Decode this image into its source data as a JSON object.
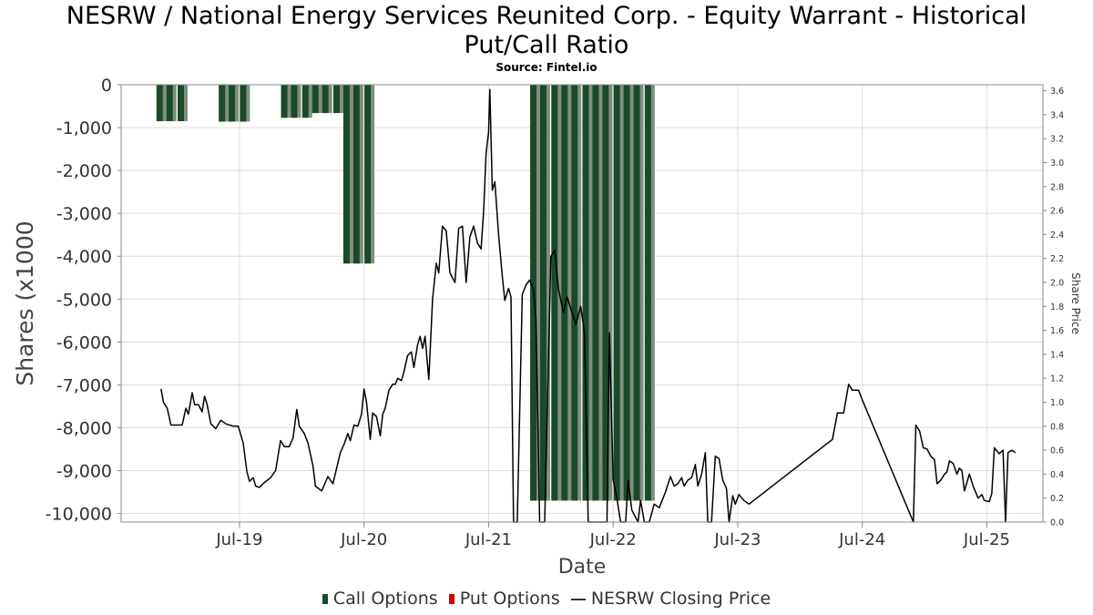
{
  "title_line1": "NESRW / National Energy Services Reunited Corp. - Equity Warrant - Historical",
  "title_line2": "Put/Call Ratio",
  "subtitle": "Source: Fintel.io",
  "chart_data": {
    "type": "bar",
    "title": "NESRW / National Energy Services Reunited Corp. - Equity Warrant - Historical Put/Call Ratio",
    "subtitle": "Source: Fintel.io",
    "xlabel": "Date",
    "ylabel": "Shares (x1000",
    "y2label": "Share Price",
    "xlim": [
      2018.55,
      2025.95
    ],
    "ylim": [
      -10200,
      0
    ],
    "y2lim": [
      0,
      3.65
    ],
    "x_ticks": [
      {
        "x": 2019.5,
        "label": "Jul-19"
      },
      {
        "x": 2020.5,
        "label": "Jul-20"
      },
      {
        "x": 2021.5,
        "label": "Jul-21"
      },
      {
        "x": 2022.5,
        "label": "Jul-22"
      },
      {
        "x": 2023.5,
        "label": "Jul-23"
      },
      {
        "x": 2024.5,
        "label": "Jul-24"
      },
      {
        "x": 2025.5,
        "label": "Jul-25"
      }
    ],
    "y_ticks": [
      0,
      -1000,
      -2000,
      -3000,
      -4000,
      -5000,
      -6000,
      -7000,
      -8000,
      -9000,
      -10000
    ],
    "y_tick_labels": [
      "0",
      "-1,000",
      "-2,000",
      "-3,000",
      "-4,000",
      "-5,000",
      "-6,000",
      "-7,000",
      "-8,000",
      "-9,000",
      "-10,000"
    ],
    "y2_ticks": [
      0.0,
      0.2,
      0.4,
      0.6,
      0.8,
      1.0,
      1.2,
      1.4,
      1.6,
      1.8,
      2.0,
      2.2,
      2.4,
      2.6,
      2.8,
      3.0,
      3.2,
      3.4,
      3.6
    ],
    "y2_tick_labels": [
      "0.0",
      "0.2",
      "0.4",
      "0.6",
      "0.8",
      "1.0",
      "1.2",
      "1.4",
      "1.6",
      "1.8",
      "2.0",
      "2.2",
      "2.4",
      "2.6",
      "2.8",
      "3.0",
      "3.2",
      "3.4",
      "3.6"
    ],
    "grid": true,
    "legend_position": "bottom",
    "colors": {
      "call": "#1a4a2a",
      "call_edge": "#7f8f80",
      "put": "#cc0000",
      "price": "#000000"
    },
    "series": [
      {
        "name": "Call Options",
        "bars": [
          {
            "x": 2018.87,
            "value": -850
          },
          {
            "x": 2018.95,
            "value": -850
          },
          {
            "x": 2019.04,
            "value": -850
          },
          {
            "x": 2019.37,
            "value": -860
          },
          {
            "x": 2019.45,
            "value": -860
          },
          {
            "x": 2019.54,
            "value": -860
          },
          {
            "x": 2019.87,
            "value": -770
          },
          {
            "x": 2019.95,
            "value": -770
          },
          {
            "x": 2020.04,
            "value": -770
          },
          {
            "x": 2020.12,
            "value": -660
          },
          {
            "x": 2020.2,
            "value": -660
          },
          {
            "x": 2020.29,
            "value": -660
          },
          {
            "x": 2020.37,
            "value": -4170
          },
          {
            "x": 2020.45,
            "value": -4170
          },
          {
            "x": 2020.54,
            "value": -4170
          },
          {
            "x": 2021.87,
            "value": -9700
          },
          {
            "x": 2021.95,
            "value": -9700
          },
          {
            "x": 2022.04,
            "value": -9700
          },
          {
            "x": 2022.12,
            "value": -9700
          },
          {
            "x": 2022.2,
            "value": -9700
          },
          {
            "x": 2022.29,
            "value": -9700
          },
          {
            "x": 2022.37,
            "value": -9700
          },
          {
            "x": 2022.45,
            "value": -9700
          },
          {
            "x": 2022.54,
            "value": -9700
          },
          {
            "x": 2022.62,
            "value": -9700
          },
          {
            "x": 2022.7,
            "value": -9700
          },
          {
            "x": 2022.79,
            "value": -9700
          }
        ]
      },
      {
        "name": "Put Options",
        "bars": []
      },
      {
        "name": "NESRW Closing Price",
        "points": [
          [
            2018.87,
            1.11
          ],
          [
            2018.89,
            1.0
          ],
          [
            2018.92,
            0.95
          ],
          [
            2018.95,
            0.81
          ],
          [
            2019.04,
            0.81
          ],
          [
            2019.07,
            0.95
          ],
          [
            2019.09,
            0.9
          ],
          [
            2019.12,
            1.08
          ],
          [
            2019.14,
            0.98
          ],
          [
            2019.17,
            0.98
          ],
          [
            2019.2,
            0.92
          ],
          [
            2019.22,
            1.05
          ],
          [
            2019.24,
            0.98
          ],
          [
            2019.27,
            0.82
          ],
          [
            2019.31,
            0.78
          ],
          [
            2019.35,
            0.85
          ],
          [
            2019.39,
            0.82
          ],
          [
            2019.45,
            0.8
          ],
          [
            2019.49,
            0.8
          ],
          [
            2019.53,
            0.66
          ],
          [
            2019.56,
            0.42
          ],
          [
            2019.58,
            0.34
          ],
          [
            2019.61,
            0.37
          ],
          [
            2019.63,
            0.3
          ],
          [
            2019.66,
            0.29
          ],
          [
            2019.7,
            0.33
          ],
          [
            2019.75,
            0.37
          ],
          [
            2019.79,
            0.43
          ],
          [
            2019.83,
            0.68
          ],
          [
            2019.86,
            0.63
          ],
          [
            2019.9,
            0.63
          ],
          [
            2019.93,
            0.7
          ],
          [
            2019.96,
            0.94
          ],
          [
            2019.98,
            0.8
          ],
          [
            2020.02,
            0.74
          ],
          [
            2020.05,
            0.66
          ],
          [
            2020.09,
            0.47
          ],
          [
            2020.11,
            0.3
          ],
          [
            2020.16,
            0.26
          ],
          [
            2020.21,
            0.38
          ],
          [
            2020.25,
            0.32
          ],
          [
            2020.28,
            0.45
          ],
          [
            2020.31,
            0.58
          ],
          [
            2020.34,
            0.65
          ],
          [
            2020.37,
            0.74
          ],
          [
            2020.39,
            0.68
          ],
          [
            2020.42,
            0.81
          ],
          [
            2020.45,
            0.8
          ],
          [
            2020.48,
            0.9
          ],
          [
            2020.5,
            1.11
          ],
          [
            2020.52,
            1.0
          ],
          [
            2020.55,
            0.69
          ],
          [
            2020.57,
            0.91
          ],
          [
            2020.6,
            0.88
          ],
          [
            2020.63,
            0.72
          ],
          [
            2020.65,
            0.9
          ],
          [
            2020.67,
            0.95
          ],
          [
            2020.7,
            1.1
          ],
          [
            2020.73,
            1.15
          ],
          [
            2020.75,
            1.15
          ],
          [
            2020.77,
            1.2
          ],
          [
            2020.8,
            1.18
          ],
          [
            2020.82,
            1.25
          ],
          [
            2020.85,
            1.39
          ],
          [
            2020.88,
            1.42
          ],
          [
            2020.9,
            1.29
          ],
          [
            2020.93,
            1.48
          ],
          [
            2020.95,
            1.55
          ],
          [
            2020.97,
            1.45
          ],
          [
            2020.99,
            1.55
          ],
          [
            2021.02,
            1.19
          ],
          [
            2021.05,
            1.86
          ],
          [
            2021.08,
            2.16
          ],
          [
            2021.1,
            2.08
          ],
          [
            2021.13,
            2.47
          ],
          [
            2021.16,
            2.43
          ],
          [
            2021.19,
            2.08
          ],
          [
            2021.23,
            2.0
          ],
          [
            2021.26,
            2.45
          ],
          [
            2021.29,
            2.47
          ],
          [
            2021.32,
            2.0
          ],
          [
            2021.35,
            2.38
          ],
          [
            2021.38,
            2.47
          ],
          [
            2021.41,
            2.33
          ],
          [
            2021.44,
            2.28
          ],
          [
            2021.46,
            2.6
          ],
          [
            2021.48,
            3.08
          ],
          [
            2021.5,
            3.25
          ],
          [
            2021.51,
            3.61
          ],
          [
            2021.53,
            2.77
          ],
          [
            2021.55,
            2.84
          ],
          [
            2021.58,
            2.4
          ],
          [
            2021.61,
            2.05
          ],
          [
            2021.63,
            1.85
          ],
          [
            2021.66,
            1.95
          ],
          [
            2021.68,
            1.88
          ],
          [
            2021.7,
            0.0
          ],
          [
            2021.73,
            0.0
          ],
          [
            2021.77,
            1.9
          ],
          [
            2021.8,
            1.98
          ],
          [
            2021.83,
            2.02
          ],
          [
            2021.86,
            1.94
          ],
          [
            2021.88,
            1.7
          ],
          [
            2021.91,
            0.0
          ],
          [
            2021.95,
            0.0
          ],
          [
            2022.0,
            2.22
          ],
          [
            2022.03,
            2.27
          ],
          [
            2022.06,
            1.95
          ],
          [
            2022.1,
            1.75
          ],
          [
            2022.13,
            1.88
          ],
          [
            2022.16,
            1.78
          ],
          [
            2022.2,
            1.65
          ],
          [
            2022.24,
            1.8
          ],
          [
            2022.27,
            1.58
          ],
          [
            2022.3,
            0.0
          ],
          [
            2022.45,
            0.0
          ],
          [
            2022.47,
            1.58
          ],
          [
            2022.5,
            0.35
          ],
          [
            2022.53,
            0.2
          ],
          [
            2022.56,
            0.0
          ],
          [
            2022.6,
            0.0
          ],
          [
            2022.62,
            0.35
          ],
          [
            2022.65,
            0.1
          ],
          [
            2022.7,
            0.0
          ],
          [
            2022.72,
            0.18
          ],
          [
            2022.75,
            0.0
          ],
          [
            2022.79,
            0.0
          ],
          [
            2022.83,
            0.15
          ],
          [
            2022.87,
            0.12
          ],
          [
            2022.92,
            0.25
          ],
          [
            2022.96,
            0.38
          ],
          [
            2022.99,
            0.3
          ],
          [
            2023.02,
            0.32
          ],
          [
            2023.05,
            0.37
          ],
          [
            2023.07,
            0.3
          ],
          [
            2023.1,
            0.35
          ],
          [
            2023.13,
            0.37
          ],
          [
            2023.16,
            0.48
          ],
          [
            2023.18,
            0.3
          ],
          [
            2023.21,
            0.4
          ],
          [
            2023.24,
            0.58
          ],
          [
            2023.26,
            0.0
          ],
          [
            2023.29,
            0.0
          ],
          [
            2023.32,
            0.55
          ],
          [
            2023.35,
            0.53
          ],
          [
            2023.38,
            0.35
          ],
          [
            2023.41,
            0.28
          ],
          [
            2023.43,
            0.0
          ],
          [
            2023.46,
            0.22
          ],
          [
            2023.48,
            0.15
          ],
          [
            2023.51,
            0.23
          ],
          [
            2023.55,
            0.18
          ],
          [
            2023.59,
            0.15
          ],
          [
            2024.26,
            0.69
          ],
          [
            2024.3,
            0.91
          ],
          [
            2024.35,
            0.91
          ],
          [
            2024.39,
            1.15
          ],
          [
            2024.42,
            1.1
          ],
          [
            2024.47,
            1.1
          ],
          [
            2024.5,
            1.02
          ],
          [
            2024.91,
            0.0
          ],
          [
            2024.93,
            0.81
          ],
          [
            2024.96,
            0.76
          ],
          [
            2024.99,
            0.62
          ],
          [
            2025.02,
            0.61
          ],
          [
            2025.05,
            0.55
          ],
          [
            2025.08,
            0.52
          ],
          [
            2025.1,
            0.32
          ],
          [
            2025.13,
            0.35
          ],
          [
            2025.16,
            0.4
          ],
          [
            2025.18,
            0.42
          ],
          [
            2025.2,
            0.51
          ],
          [
            2025.23,
            0.49
          ],
          [
            2025.26,
            0.4
          ],
          [
            2025.28,
            0.45
          ],
          [
            2025.3,
            0.43
          ],
          [
            2025.32,
            0.26
          ],
          [
            2025.36,
            0.4
          ],
          [
            2025.39,
            0.3
          ],
          [
            2025.43,
            0.2
          ],
          [
            2025.46,
            0.23
          ],
          [
            2025.48,
            0.18
          ],
          [
            2025.52,
            0.17
          ],
          [
            2025.54,
            0.24
          ],
          [
            2025.56,
            0.62
          ],
          [
            2025.6,
            0.57
          ],
          [
            2025.63,
            0.6
          ],
          [
            2025.65,
            0.0
          ],
          [
            2025.67,
            0.58
          ],
          [
            2025.7,
            0.6
          ],
          [
            2025.73,
            0.58
          ]
        ]
      }
    ]
  },
  "legend": {
    "call": "Call Options",
    "put": "Put Options",
    "price": "NESRW Closing Price"
  }
}
